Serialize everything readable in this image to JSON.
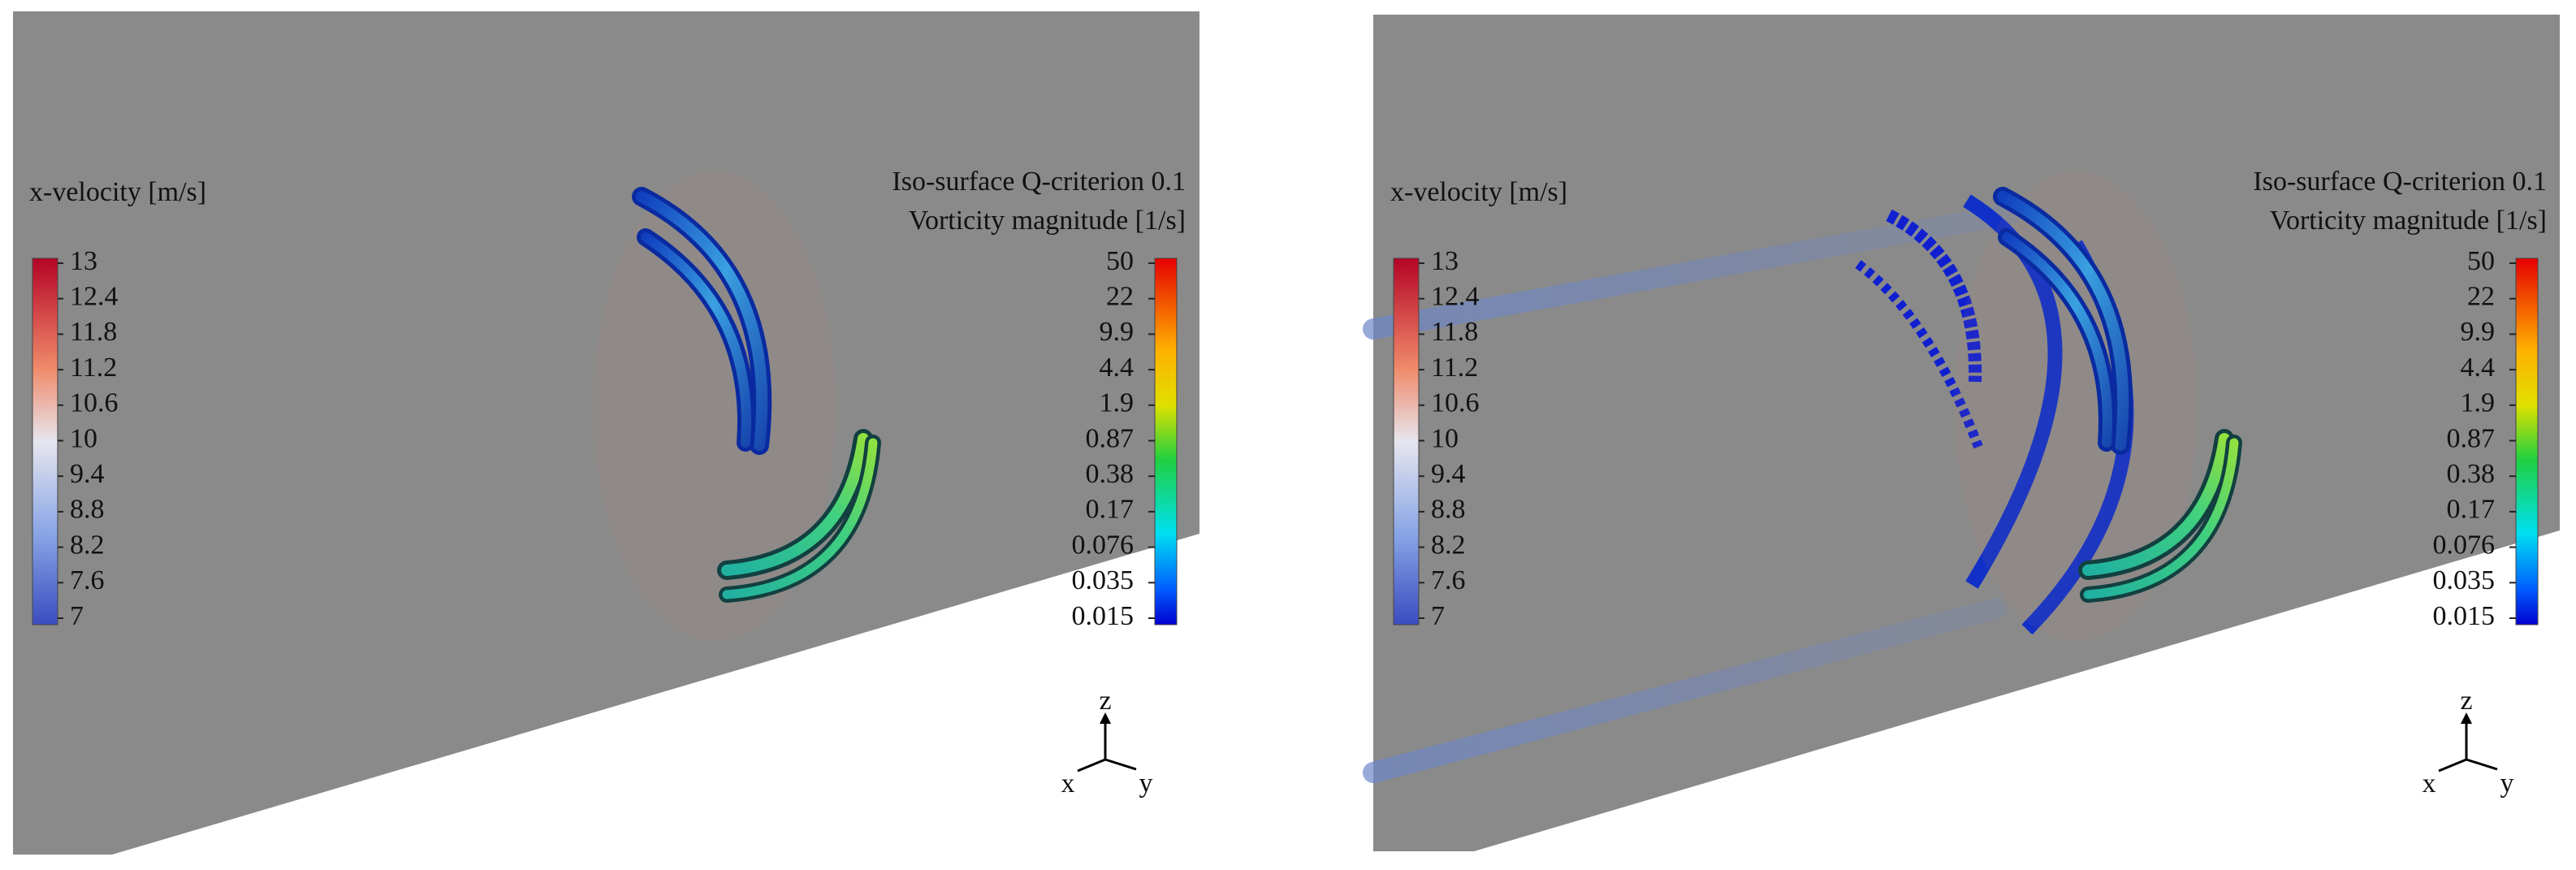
{
  "panels": [
    {
      "velocity_legend": {
        "title": "x-velocity [m/s]",
        "ticks": [
          13,
          12.4,
          11.8,
          11.2,
          10.6,
          10,
          9.4,
          8.8,
          8.2,
          7.6,
          7
        ]
      },
      "vorticity_legend": {
        "title": "Iso-surface Q-criterion 0.1",
        "subtitle": "Vorticity magnitude [1/s]",
        "ticks": [
          50,
          22,
          9.9,
          4.4,
          1.9,
          0.87,
          0.38,
          0.17,
          0.076,
          0.035,
          0.015
        ]
      },
      "axes": {
        "z": "z",
        "x": "x",
        "y": "y"
      }
    },
    {
      "velocity_legend": {
        "title": "x-velocity [m/s]",
        "ticks": [
          13,
          12.4,
          11.8,
          11.2,
          10.6,
          10,
          9.4,
          8.8,
          8.2,
          7.6,
          7
        ]
      },
      "vorticity_legend": {
        "title": "Iso-surface Q-criterion 0.1",
        "subtitle": "Vorticity magnitude [1/s]",
        "ticks": [
          50,
          22,
          9.9,
          4.4,
          1.9,
          0.87,
          0.38,
          0.17,
          0.076,
          0.035,
          0.015
        ]
      },
      "axes": {
        "z": "z",
        "x": "x",
        "y": "y"
      }
    }
  ]
}
